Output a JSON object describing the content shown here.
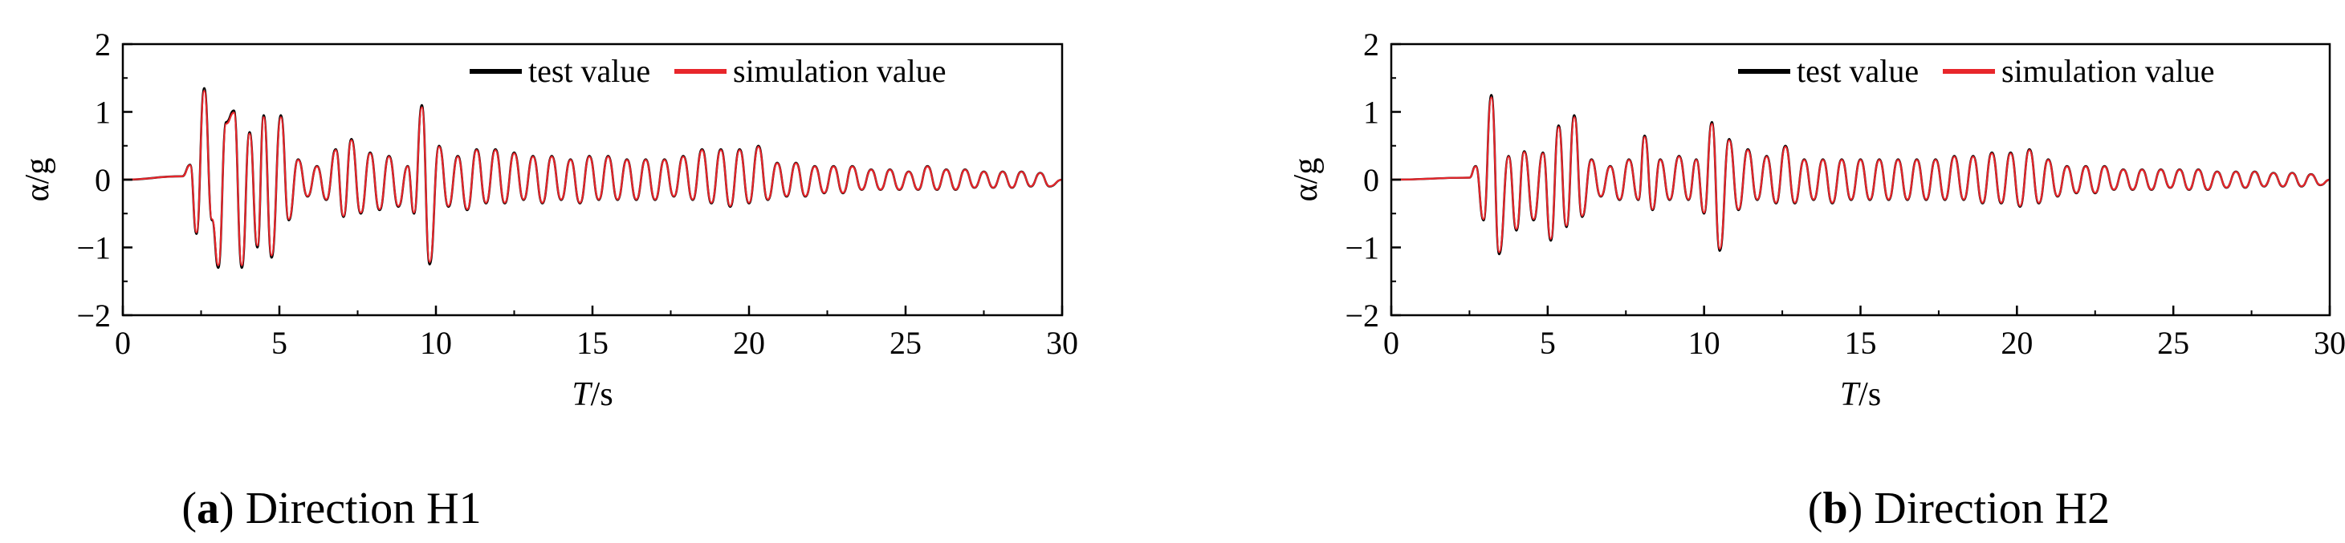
{
  "colors": {
    "test_value": "#000000",
    "simulation_value": "#e8262b",
    "axis": "#000000"
  },
  "captions": [
    {
      "open": "(",
      "tag": "a",
      "close": ") ",
      "text": "Direction H1"
    },
    {
      "open": "(",
      "tag": "b",
      "close": ") ",
      "text": "Direction H2"
    }
  ],
  "chart_data": [
    {
      "type": "line",
      "xlabel_italic": "T",
      "xlabel_unit": "/s",
      "ylabel": "α/g",
      "xlim": [
        0,
        30
      ],
      "ylim": [
        -2,
        2
      ],
      "xticks": [
        0,
        5,
        10,
        15,
        20,
        25,
        30
      ],
      "yticks": [
        2,
        1,
        0,
        -1,
        -2
      ],
      "legend_position": "top-right",
      "grid": false,
      "series": [
        {
          "name": "test value",
          "color": "#000000"
        },
        {
          "name": "simulation value",
          "color": "#e8262b"
        }
      ],
      "peaks": [
        {
          "x": 0.0,
          "y": 0.0
        },
        {
          "x": 1.9,
          "y": 0.05
        },
        {
          "x": 2.15,
          "y": 0.22
        },
        {
          "x": 2.35,
          "y": -0.8
        },
        {
          "x": 2.6,
          "y": 1.35
        },
        {
          "x": 2.85,
          "y": -0.6
        },
        {
          "x": 3.05,
          "y": -1.3
        },
        {
          "x": 3.3,
          "y": 0.85
        },
        {
          "x": 3.55,
          "y": 1.02
        },
        {
          "x": 3.8,
          "y": -1.3
        },
        {
          "x": 4.05,
          "y": 0.7
        },
        {
          "x": 4.3,
          "y": -1.0
        },
        {
          "x": 4.5,
          "y": 0.95
        },
        {
          "x": 4.75,
          "y": -1.15
        },
        {
          "x": 5.05,
          "y": 0.95
        },
        {
          "x": 5.3,
          "y": -0.6
        },
        {
          "x": 5.6,
          "y": 0.3
        },
        {
          "x": 5.9,
          "y": -0.25
        },
        {
          "x": 6.2,
          "y": 0.2
        },
        {
          "x": 6.5,
          "y": -0.3
        },
        {
          "x": 6.8,
          "y": 0.45
        },
        {
          "x": 7.05,
          "y": -0.55
        },
        {
          "x": 7.3,
          "y": 0.6
        },
        {
          "x": 7.6,
          "y": -0.5
        },
        {
          "x": 7.9,
          "y": 0.4
        },
        {
          "x": 8.2,
          "y": -0.45
        },
        {
          "x": 8.5,
          "y": 0.35
        },
        {
          "x": 8.8,
          "y": -0.4
        },
        {
          "x": 9.1,
          "y": 0.2
        },
        {
          "x": 9.3,
          "y": -0.5
        },
        {
          "x": 9.55,
          "y": 1.1
        },
        {
          "x": 9.8,
          "y": -1.25
        },
        {
          "x": 10.1,
          "y": 0.5
        },
        {
          "x": 10.4,
          "y": -0.4
        },
        {
          "x": 10.7,
          "y": 0.35
        },
        {
          "x": 11.0,
          "y": -0.45
        },
        {
          "x": 11.3,
          "y": 0.45
        },
        {
          "x": 11.6,
          "y": -0.35
        },
        {
          "x": 11.9,
          "y": 0.45
        },
        {
          "x": 12.2,
          "y": -0.35
        },
        {
          "x": 12.5,
          "y": 0.4
        },
        {
          "x": 12.8,
          "y": -0.3
        },
        {
          "x": 13.1,
          "y": 0.35
        },
        {
          "x": 13.4,
          "y": -0.35
        },
        {
          "x": 13.7,
          "y": 0.35
        },
        {
          "x": 14.0,
          "y": -0.3
        },
        {
          "x": 14.3,
          "y": 0.3
        },
        {
          "x": 14.6,
          "y": -0.35
        },
        {
          "x": 14.9,
          "y": 0.35
        },
        {
          "x": 15.2,
          "y": -0.3
        },
        {
          "x": 15.5,
          "y": 0.35
        },
        {
          "x": 15.8,
          "y": -0.3
        },
        {
          "x": 16.1,
          "y": 0.3
        },
        {
          "x": 16.4,
          "y": -0.3
        },
        {
          "x": 16.7,
          "y": 0.3
        },
        {
          "x": 17.0,
          "y": -0.3
        },
        {
          "x": 17.3,
          "y": 0.3
        },
        {
          "x": 17.6,
          "y": -0.25
        },
        {
          "x": 17.9,
          "y": 0.35
        },
        {
          "x": 18.2,
          "y": -0.3
        },
        {
          "x": 18.5,
          "y": 0.45
        },
        {
          "x": 18.8,
          "y": -0.35
        },
        {
          "x": 19.1,
          "y": 0.45
        },
        {
          "x": 19.4,
          "y": -0.4
        },
        {
          "x": 19.7,
          "y": 0.45
        },
        {
          "x": 20.0,
          "y": -0.35
        },
        {
          "x": 20.3,
          "y": 0.5
        },
        {
          "x": 20.6,
          "y": -0.3
        },
        {
          "x": 20.9,
          "y": 0.25
        },
        {
          "x": 21.2,
          "y": -0.25
        },
        {
          "x": 21.5,
          "y": 0.25
        },
        {
          "x": 21.8,
          "y": -0.25
        },
        {
          "x": 22.1,
          "y": 0.2
        },
        {
          "x": 22.4,
          "y": -0.2
        },
        {
          "x": 22.7,
          "y": 0.2
        },
        {
          "x": 23.0,
          "y": -0.2
        },
        {
          "x": 23.3,
          "y": 0.2
        },
        {
          "x": 23.6,
          "y": -0.15
        },
        {
          "x": 23.9,
          "y": 0.15
        },
        {
          "x": 24.2,
          "y": -0.15
        },
        {
          "x": 24.5,
          "y": 0.15
        },
        {
          "x": 24.8,
          "y": -0.15
        },
        {
          "x": 25.1,
          "y": 0.12
        },
        {
          "x": 25.4,
          "y": -0.15
        },
        {
          "x": 25.7,
          "y": 0.2
        },
        {
          "x": 26.0,
          "y": -0.15
        },
        {
          "x": 26.3,
          "y": 0.15
        },
        {
          "x": 26.6,
          "y": -0.15
        },
        {
          "x": 26.9,
          "y": 0.15
        },
        {
          "x": 27.2,
          "y": -0.12
        },
        {
          "x": 27.5,
          "y": 0.12
        },
        {
          "x": 27.8,
          "y": -0.12
        },
        {
          "x": 28.1,
          "y": 0.12
        },
        {
          "x": 28.4,
          "y": -0.12
        },
        {
          "x": 28.7,
          "y": 0.12
        },
        {
          "x": 29.0,
          "y": -0.1
        },
        {
          "x": 29.3,
          "y": 0.1
        },
        {
          "x": 29.6,
          "y": -0.1
        },
        {
          "x": 30.0,
          "y": 0.0
        }
      ]
    },
    {
      "type": "line",
      "xlabel_italic": "T",
      "xlabel_unit": "/s",
      "ylabel": "α/g",
      "xlim": [
        0,
        30
      ],
      "ylim": [
        -2,
        2
      ],
      "xticks": [
        0,
        5,
        10,
        15,
        20,
        25,
        30
      ],
      "yticks": [
        2,
        1,
        0,
        -1,
        -2
      ],
      "legend_position": "top-right",
      "grid": false,
      "series": [
        {
          "name": "test value",
          "color": "#000000"
        },
        {
          "name": "simulation value",
          "color": "#e8262b"
        }
      ],
      "peaks": [
        {
          "x": 0.0,
          "y": 0.0
        },
        {
          "x": 2.5,
          "y": 0.03
        },
        {
          "x": 2.7,
          "y": 0.2
        },
        {
          "x": 2.95,
          "y": -0.6
        },
        {
          "x": 3.2,
          "y": 1.25
        },
        {
          "x": 3.45,
          "y": -1.1
        },
        {
          "x": 3.75,
          "y": 0.35
        },
        {
          "x": 4.0,
          "y": -0.75
        },
        {
          "x": 4.25,
          "y": 0.42
        },
        {
          "x": 4.55,
          "y": -0.6
        },
        {
          "x": 4.85,
          "y": 0.4
        },
        {
          "x": 5.1,
          "y": -0.9
        },
        {
          "x": 5.35,
          "y": 0.8
        },
        {
          "x": 5.6,
          "y": -0.7
        },
        {
          "x": 5.85,
          "y": 0.95
        },
        {
          "x": 6.1,
          "y": -0.55
        },
        {
          "x": 6.4,
          "y": 0.3
        },
        {
          "x": 6.7,
          "y": -0.25
        },
        {
          "x": 7.0,
          "y": 0.2
        },
        {
          "x": 7.3,
          "y": -0.3
        },
        {
          "x": 7.6,
          "y": 0.3
        },
        {
          "x": 7.9,
          "y": -0.3
        },
        {
          "x": 8.1,
          "y": 0.65
        },
        {
          "x": 8.35,
          "y": -0.45
        },
        {
          "x": 8.6,
          "y": 0.3
        },
        {
          "x": 8.9,
          "y": -0.3
        },
        {
          "x": 9.2,
          "y": 0.35
        },
        {
          "x": 9.5,
          "y": -0.3
        },
        {
          "x": 9.75,
          "y": 0.3
        },
        {
          "x": 10.0,
          "y": -0.5
        },
        {
          "x": 10.25,
          "y": 0.85
        },
        {
          "x": 10.5,
          "y": -1.05
        },
        {
          "x": 10.8,
          "y": 0.6
        },
        {
          "x": 11.1,
          "y": -0.45
        },
        {
          "x": 11.4,
          "y": 0.45
        },
        {
          "x": 11.7,
          "y": -0.3
        },
        {
          "x": 12.0,
          "y": 0.35
        },
        {
          "x": 12.3,
          "y": -0.35
        },
        {
          "x": 12.6,
          "y": 0.5
        },
        {
          "x": 12.9,
          "y": -0.35
        },
        {
          "x": 13.2,
          "y": 0.3
        },
        {
          "x": 13.5,
          "y": -0.3
        },
        {
          "x": 13.8,
          "y": 0.3
        },
        {
          "x": 14.1,
          "y": -0.35
        },
        {
          "x": 14.4,
          "y": 0.3
        },
        {
          "x": 14.7,
          "y": -0.3
        },
        {
          "x": 15.0,
          "y": 0.3
        },
        {
          "x": 15.3,
          "y": -0.3
        },
        {
          "x": 15.6,
          "y": 0.3
        },
        {
          "x": 15.9,
          "y": -0.3
        },
        {
          "x": 16.2,
          "y": 0.3
        },
        {
          "x": 16.5,
          "y": -0.3
        },
        {
          "x": 16.8,
          "y": 0.3
        },
        {
          "x": 17.1,
          "y": -0.3
        },
        {
          "x": 17.4,
          "y": 0.3
        },
        {
          "x": 17.7,
          "y": -0.3
        },
        {
          "x": 18.0,
          "y": 0.35
        },
        {
          "x": 18.3,
          "y": -0.3
        },
        {
          "x": 18.6,
          "y": 0.35
        },
        {
          "x": 18.9,
          "y": -0.35
        },
        {
          "x": 19.2,
          "y": 0.4
        },
        {
          "x": 19.5,
          "y": -0.35
        },
        {
          "x": 19.8,
          "y": 0.4
        },
        {
          "x": 20.1,
          "y": -0.4
        },
        {
          "x": 20.4,
          "y": 0.45
        },
        {
          "x": 20.7,
          "y": -0.35
        },
        {
          "x": 21.0,
          "y": 0.3
        },
        {
          "x": 21.3,
          "y": -0.25
        },
        {
          "x": 21.6,
          "y": 0.2
        },
        {
          "x": 21.9,
          "y": -0.2
        },
        {
          "x": 22.2,
          "y": 0.2
        },
        {
          "x": 22.5,
          "y": -0.2
        },
        {
          "x": 22.8,
          "y": 0.2
        },
        {
          "x": 23.1,
          "y": -0.15
        },
        {
          "x": 23.4,
          "y": 0.15
        },
        {
          "x": 23.7,
          "y": -0.15
        },
        {
          "x": 24.0,
          "y": 0.15
        },
        {
          "x": 24.3,
          "y": -0.15
        },
        {
          "x": 24.6,
          "y": 0.15
        },
        {
          "x": 24.9,
          "y": -0.12
        },
        {
          "x": 25.2,
          "y": 0.15
        },
        {
          "x": 25.5,
          "y": -0.15
        },
        {
          "x": 25.8,
          "y": 0.15
        },
        {
          "x": 26.1,
          "y": -0.15
        },
        {
          "x": 26.4,
          "y": 0.12
        },
        {
          "x": 26.7,
          "y": -0.12
        },
        {
          "x": 27.0,
          "y": 0.12
        },
        {
          "x": 27.3,
          "y": -0.12
        },
        {
          "x": 27.6,
          "y": 0.12
        },
        {
          "x": 27.9,
          "y": -0.1
        },
        {
          "x": 28.2,
          "y": 0.1
        },
        {
          "x": 28.5,
          "y": -0.1
        },
        {
          "x": 28.8,
          "y": 0.1
        },
        {
          "x": 29.1,
          "y": -0.1
        },
        {
          "x": 29.4,
          "y": 0.08
        },
        {
          "x": 29.7,
          "y": -0.08
        },
        {
          "x": 30.0,
          "y": 0.0
        }
      ]
    }
  ]
}
